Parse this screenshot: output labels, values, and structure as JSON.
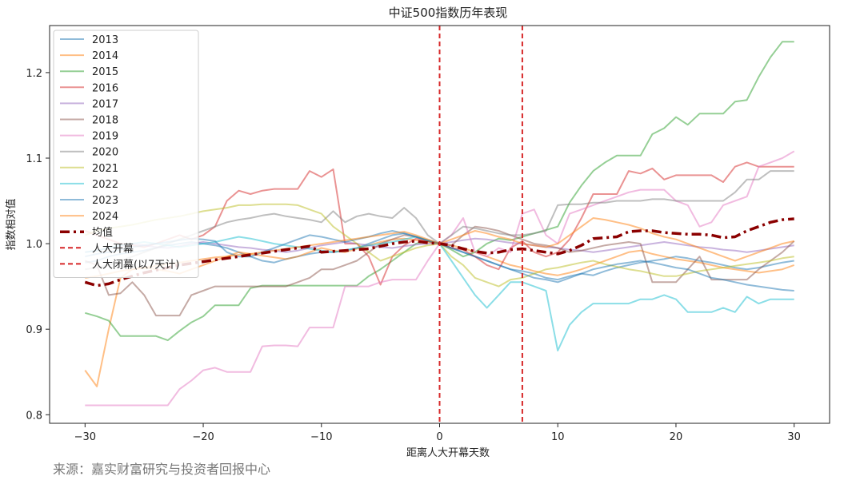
{
  "chart_data": {
    "type": "line",
    "title": "中证500指数历年表现",
    "xlabel": "距离人大开幕天数",
    "ylabel": "指数相对值",
    "xlim": [
      -33,
      33
    ],
    "ylim": [
      0.79,
      1.255
    ],
    "xticks": [
      -30,
      -20,
      -10,
      0,
      10,
      20,
      30
    ],
    "yticks": [
      0.8,
      0.9,
      1.0,
      1.1,
      1.2
    ],
    "xtick_labels": [
      "−30",
      "−20",
      "−10",
      "0",
      "10",
      "20",
      "30"
    ],
    "ytick_labels": [
      "0.8",
      "0.9",
      "1.0",
      "1.1",
      "1.2"
    ],
    "grid": false,
    "legend_position": "upper-left",
    "x": [
      -30,
      -29,
      -28,
      -27,
      -26,
      -25,
      -24,
      -23,
      -22,
      -21,
      -20,
      -19,
      -18,
      -17,
      -16,
      -15,
      -14,
      -13,
      -12,
      -11,
      -10,
      -9,
      -8,
      -7,
      -6,
      -5,
      -4,
      -3,
      -2,
      -1,
      0,
      1,
      2,
      3,
      4,
      5,
      6,
      7,
      8,
      9,
      10,
      11,
      12,
      13,
      14,
      15,
      16,
      17,
      18,
      19,
      20,
      21,
      22,
      23,
      24,
      25,
      26,
      27,
      28,
      29,
      30
    ],
    "series": [
      {
        "name": "2013",
        "color": "#1f77b4",
        "values": [
          0.978,
          0.98,
          0.985,
          0.988,
          0.99,
          0.992,
          0.995,
          0.998,
          1.0,
          1.002,
          1.0,
          0.998,
          0.995,
          0.99,
          0.985,
          0.98,
          0.978,
          0.982,
          0.985,
          0.988,
          0.99,
          0.99,
          0.992,
          0.995,
          1.0,
          1.005,
          1.01,
          1.012,
          1.008,
          1.003,
          1.0,
          0.995,
          0.99,
          0.985,
          0.98,
          0.975,
          0.97,
          0.968,
          0.965,
          0.96,
          0.958,
          0.962,
          0.965,
          0.963,
          0.968,
          0.972,
          0.975,
          0.978,
          0.98,
          0.982,
          0.985,
          0.983,
          0.98,
          0.978,
          0.975,
          0.972,
          0.97,
          0.972,
          0.975,
          0.978,
          0.98
        ]
      },
      {
        "name": "2014",
        "color": "#ff7f0e",
        "values": [
          0.852,
          0.833,
          0.9,
          0.96,
          0.97,
          0.972,
          0.97,
          0.968,
          0.965,
          0.97,
          0.975,
          0.98,
          0.985,
          0.99,
          0.988,
          0.986,
          0.984,
          0.982,
          0.985,
          0.99,
          0.995,
          0.992,
          0.99,
          0.994,
          0.998,
          1.002,
          1.005,
          1.006,
          1.004,
          1.002,
          1.0,
          0.998,
          0.995,
          0.99,
          0.985,
          0.98,
          0.975,
          0.972,
          0.968,
          0.965,
          0.963,
          0.966,
          0.97,
          0.975,
          0.98,
          0.985,
          0.99,
          0.992,
          0.988,
          0.985,
          0.982,
          0.98,
          0.978,
          0.975,
          0.972,
          0.97,
          0.968,
          0.966,
          0.968,
          0.97,
          0.975
        ]
      },
      {
        "name": "2015",
        "color": "#2ca02c",
        "values": [
          0.919,
          0.915,
          0.91,
          0.892,
          0.892,
          0.892,
          0.892,
          0.887,
          0.898,
          0.908,
          0.915,
          0.928,
          0.928,
          0.928,
          0.948,
          0.951,
          0.951,
          0.951,
          0.951,
          0.951,
          0.951,
          0.951,
          0.951,
          0.951,
          0.962,
          0.97,
          0.98,
          0.99,
          1.0,
          1.003,
          1.0,
          0.993,
          0.985,
          0.99,
          1.0,
          1.006,
          1.004,
          1.008,
          1.012,
          1.016,
          1.02,
          1.048,
          1.068,
          1.085,
          1.095,
          1.103,
          1.103,
          1.103,
          1.128,
          1.135,
          1.148,
          1.139,
          1.152,
          1.152,
          1.152,
          1.166,
          1.168,
          1.195,
          1.218,
          1.236,
          1.236
        ]
      },
      {
        "name": "2016",
        "color": "#d62728",
        "values": [
          1.015,
          1.01,
          1.005,
          1.0,
          0.998,
          0.996,
          1.0,
          1.005,
          1.01,
          1.005,
          1.01,
          1.02,
          1.05,
          1.062,
          1.058,
          1.062,
          1.064,
          1.064,
          1.064,
          1.085,
          1.078,
          1.087,
          1.0,
          1.0,
          0.985,
          0.952,
          0.985,
          0.998,
          1.006,
          1.003,
          1.0,
          0.995,
          0.993,
          0.985,
          0.975,
          0.97,
          0.995,
          1.003,
          0.99,
          0.985,
          0.99,
          1.005,
          1.03,
          1.058,
          1.058,
          1.058,
          1.085,
          1.082,
          1.088,
          1.075,
          1.08,
          1.08,
          1.08,
          1.08,
          1.072,
          1.09,
          1.095,
          1.09,
          1.09,
          1.09,
          1.09
        ]
      },
      {
        "name": "2017",
        "color": "#9467bd",
        "values": [
          0.99,
          0.992,
          0.995,
          0.997,
          1.0,
          0.998,
          0.996,
          0.995,
          0.997,
          1.0,
          1.002,
          1.0,
          0.998,
          0.996,
          0.995,
          0.993,
          0.992,
          0.99,
          0.992,
          0.995,
          0.998,
          1.0,
          1.002,
          1.0,
          0.998,
          0.996,
          0.995,
          0.997,
          0.999,
          1.0,
          1.0,
          1.002,
          1.004,
          1.006,
          1.005,
          1.003,
          1.001,
          1.0,
          0.998,
          0.996,
          0.995,
          0.993,
          0.992,
          0.99,
          0.992,
          0.994,
          0.996,
          0.998,
          1.0,
          1.002,
          1.0,
          0.998,
          0.996,
          0.995,
          0.993,
          0.992,
          0.99,
          0.992,
          0.994,
          0.996,
          0.998
        ]
      },
      {
        "name": "2018",
        "color": "#8c564b",
        "values": [
          0.98,
          0.975,
          0.94,
          0.942,
          0.955,
          0.94,
          0.916,
          0.916,
          0.916,
          0.94,
          0.945,
          0.95,
          0.95,
          0.95,
          0.95,
          0.95,
          0.95,
          0.95,
          0.955,
          0.96,
          0.97,
          0.97,
          0.975,
          0.98,
          0.99,
          1.0,
          1.005,
          1.01,
          1.008,
          1.004,
          1.0,
          0.998,
          1.01,
          1.02,
          1.018,
          1.015,
          1.01,
          1.005,
          1.0,
          0.998,
          0.995,
          0.99,
          0.992,
          0.995,
          0.998,
          1.0,
          1.002,
          1.0,
          0.955,
          0.955,
          0.955,
          0.97,
          0.985,
          0.958,
          0.958,
          0.958,
          0.958,
          0.97,
          0.98,
          0.99,
          1.003
        ]
      },
      {
        "name": "2019",
        "color": "#e377c2",
        "values": [
          0.811,
          0.811,
          0.811,
          0.811,
          0.811,
          0.811,
          0.811,
          0.811,
          0.83,
          0.84,
          0.852,
          0.855,
          0.85,
          0.85,
          0.85,
          0.88,
          0.881,
          0.881,
          0.88,
          0.902,
          0.902,
          0.902,
          0.95,
          0.95,
          0.95,
          0.955,
          0.958,
          0.958,
          0.958,
          0.98,
          1.0,
          1.01,
          1.03,
          0.99,
          0.985,
          0.995,
          0.99,
          1.035,
          1.04,
          1.01,
          1.0,
          1.035,
          1.04,
          1.045,
          1.05,
          1.055,
          1.06,
          1.063,
          1.063,
          1.063,
          1.05,
          1.045,
          1.02,
          1.025,
          1.045,
          1.05,
          1.055,
          1.09,
          1.095,
          1.1,
          1.108
        ]
      },
      {
        "name": "2020",
        "color": "#7f7f7f",
        "values": [
          0.97,
          0.972,
          0.975,
          0.98,
          0.985,
          0.99,
          0.995,
          1.0,
          1.005,
          1.01,
          1.015,
          1.02,
          1.025,
          1.028,
          1.03,
          1.033,
          1.035,
          1.032,
          1.03,
          1.028,
          1.025,
          1.038,
          1.025,
          1.032,
          1.035,
          1.032,
          1.03,
          1.042,
          1.03,
          1.01,
          1.0,
          1.01,
          1.02,
          1.018,
          1.015,
          1.012,
          1.01,
          1.01,
          1.012,
          1.015,
          1.045,
          1.046,
          1.046,
          1.048,
          1.048,
          1.05,
          1.05,
          1.05,
          1.052,
          1.052,
          1.05,
          1.05,
          1.05,
          1.05,
          1.05,
          1.06,
          1.075,
          1.075,
          1.085,
          1.085,
          1.085
        ]
      },
      {
        "name": "2021",
        "color": "#bcbd22",
        "values": [
          1.01,
          1.015,
          1.018,
          1.02,
          1.022,
          1.025,
          1.028,
          1.03,
          1.032,
          1.035,
          1.038,
          1.04,
          1.042,
          1.045,
          1.045,
          1.046,
          1.046,
          1.046,
          1.045,
          1.04,
          1.035,
          1.02,
          1.01,
          1.0,
          0.99,
          0.98,
          0.985,
          0.99,
          0.995,
          0.998,
          1.0,
          0.985,
          0.975,
          0.96,
          0.955,
          0.95,
          0.958,
          0.96,
          0.965,
          0.97,
          0.972,
          0.975,
          0.978,
          0.98,
          0.976,
          0.973,
          0.97,
          0.968,
          0.965,
          0.962,
          0.962,
          0.965,
          0.968,
          0.97,
          0.972,
          0.974,
          0.976,
          0.978,
          0.98,
          0.983,
          0.985
        ]
      },
      {
        "name": "2022",
        "color": "#17becf",
        "values": [
          0.99,
          0.992,
          0.995,
          0.998,
          1.0,
          1.002,
          1.0,
          0.998,
          0.996,
          0.998,
          1.0,
          1.002,
          1.005,
          1.008,
          1.006,
          1.003,
          1.0,
          0.998,
          0.996,
          0.994,
          0.992,
          0.99,
          0.992,
          0.995,
          0.998,
          1.0,
          1.002,
          1.005,
          1.008,
          1.004,
          1.0,
          0.98,
          0.96,
          0.94,
          0.925,
          0.94,
          0.955,
          0.955,
          0.95,
          0.945,
          0.875,
          0.905,
          0.92,
          0.93,
          0.93,
          0.93,
          0.93,
          0.935,
          0.935,
          0.94,
          0.935,
          0.92,
          0.92,
          0.92,
          0.925,
          0.92,
          0.938,
          0.93,
          0.935,
          0.935,
          0.935
        ]
      },
      {
        "name": "2023",
        "color": "#1f77b4",
        "values": [
          0.985,
          0.988,
          0.99,
          0.993,
          0.996,
          0.998,
          1.0,
          1.002,
          1.004,
          1.006,
          1.005,
          1.003,
          0.99,
          0.985,
          0.985,
          0.99,
          0.995,
          1.0,
          1.005,
          1.01,
          1.008,
          1.005,
          1.002,
          1.005,
          1.008,
          1.012,
          1.015,
          1.012,
          1.008,
          1.004,
          1.0,
          0.995,
          0.99,
          0.985,
          0.98,
          0.975,
          0.97,
          0.965,
          0.96,
          0.958,
          0.955,
          0.96,
          0.965,
          0.97,
          0.973,
          0.976,
          0.978,
          0.98,
          0.978,
          0.975,
          0.972,
          0.97,
          0.965,
          0.96,
          0.958,
          0.955,
          0.952,
          0.95,
          0.948,
          0.946,
          0.945
        ]
      },
      {
        "name": "2024",
        "color": "#ff7f0e",
        "values": [
          0.96,
          0.962,
          0.965,
          0.968,
          0.97,
          0.972,
          0.974,
          0.976,
          0.978,
          0.98,
          0.982,
          0.984,
          0.985,
          0.987,
          0.988,
          0.99,
          0.992,
          0.994,
          0.996,
          0.998,
          1.0,
          1.002,
          1.004,
          1.006,
          1.008,
          1.01,
          1.012,
          1.014,
          1.01,
          1.005,
          1.0,
          1.005,
          1.01,
          1.015,
          1.012,
          1.008,
          1.005,
          1.0,
          0.998,
          0.996,
          1.0,
          1.01,
          1.02,
          1.03,
          1.028,
          1.025,
          1.022,
          1.018,
          1.012,
          1.008,
          1.005,
          1.0,
          0.995,
          0.99,
          0.985,
          0.98,
          0.985,
          0.99,
          0.995,
          1.0,
          1.003
        ]
      }
    ],
    "mean": {
      "name": "均值",
      "color": "#8b0000",
      "values": [
        0.955,
        0.951,
        0.953,
        0.958,
        0.962,
        0.966,
        0.969,
        0.972,
        0.975,
        0.977,
        0.979,
        0.981,
        0.983,
        0.985,
        0.987,
        0.989,
        0.991,
        0.993,
        0.995,
        0.997,
        0.99,
        0.991,
        0.992,
        0.993,
        0.994,
        0.997,
        1.0,
        1.002,
        1.003,
        1.001,
        1.0,
        0.998,
        0.994,
        0.991,
        0.989,
        0.99,
        0.993,
        0.994,
        0.992,
        0.99,
        0.988,
        0.992,
        0.998,
        1.006,
        1.007,
        1.008,
        1.014,
        1.015,
        1.015,
        1.013,
        1.012,
        1.011,
        1.011,
        1.01,
        1.007,
        1.008,
        1.015,
        1.02,
        1.025,
        1.028,
        1.029
      ]
    },
    "vlines": [
      {
        "label": "人大开幕",
        "x": 0,
        "color": "#d62728"
      },
      {
        "label": "人大闭幕(以7天计)",
        "x": 7,
        "color": "#d62728"
      }
    ],
    "source": "来源：嘉实财富研究与投资者回报中心"
  }
}
